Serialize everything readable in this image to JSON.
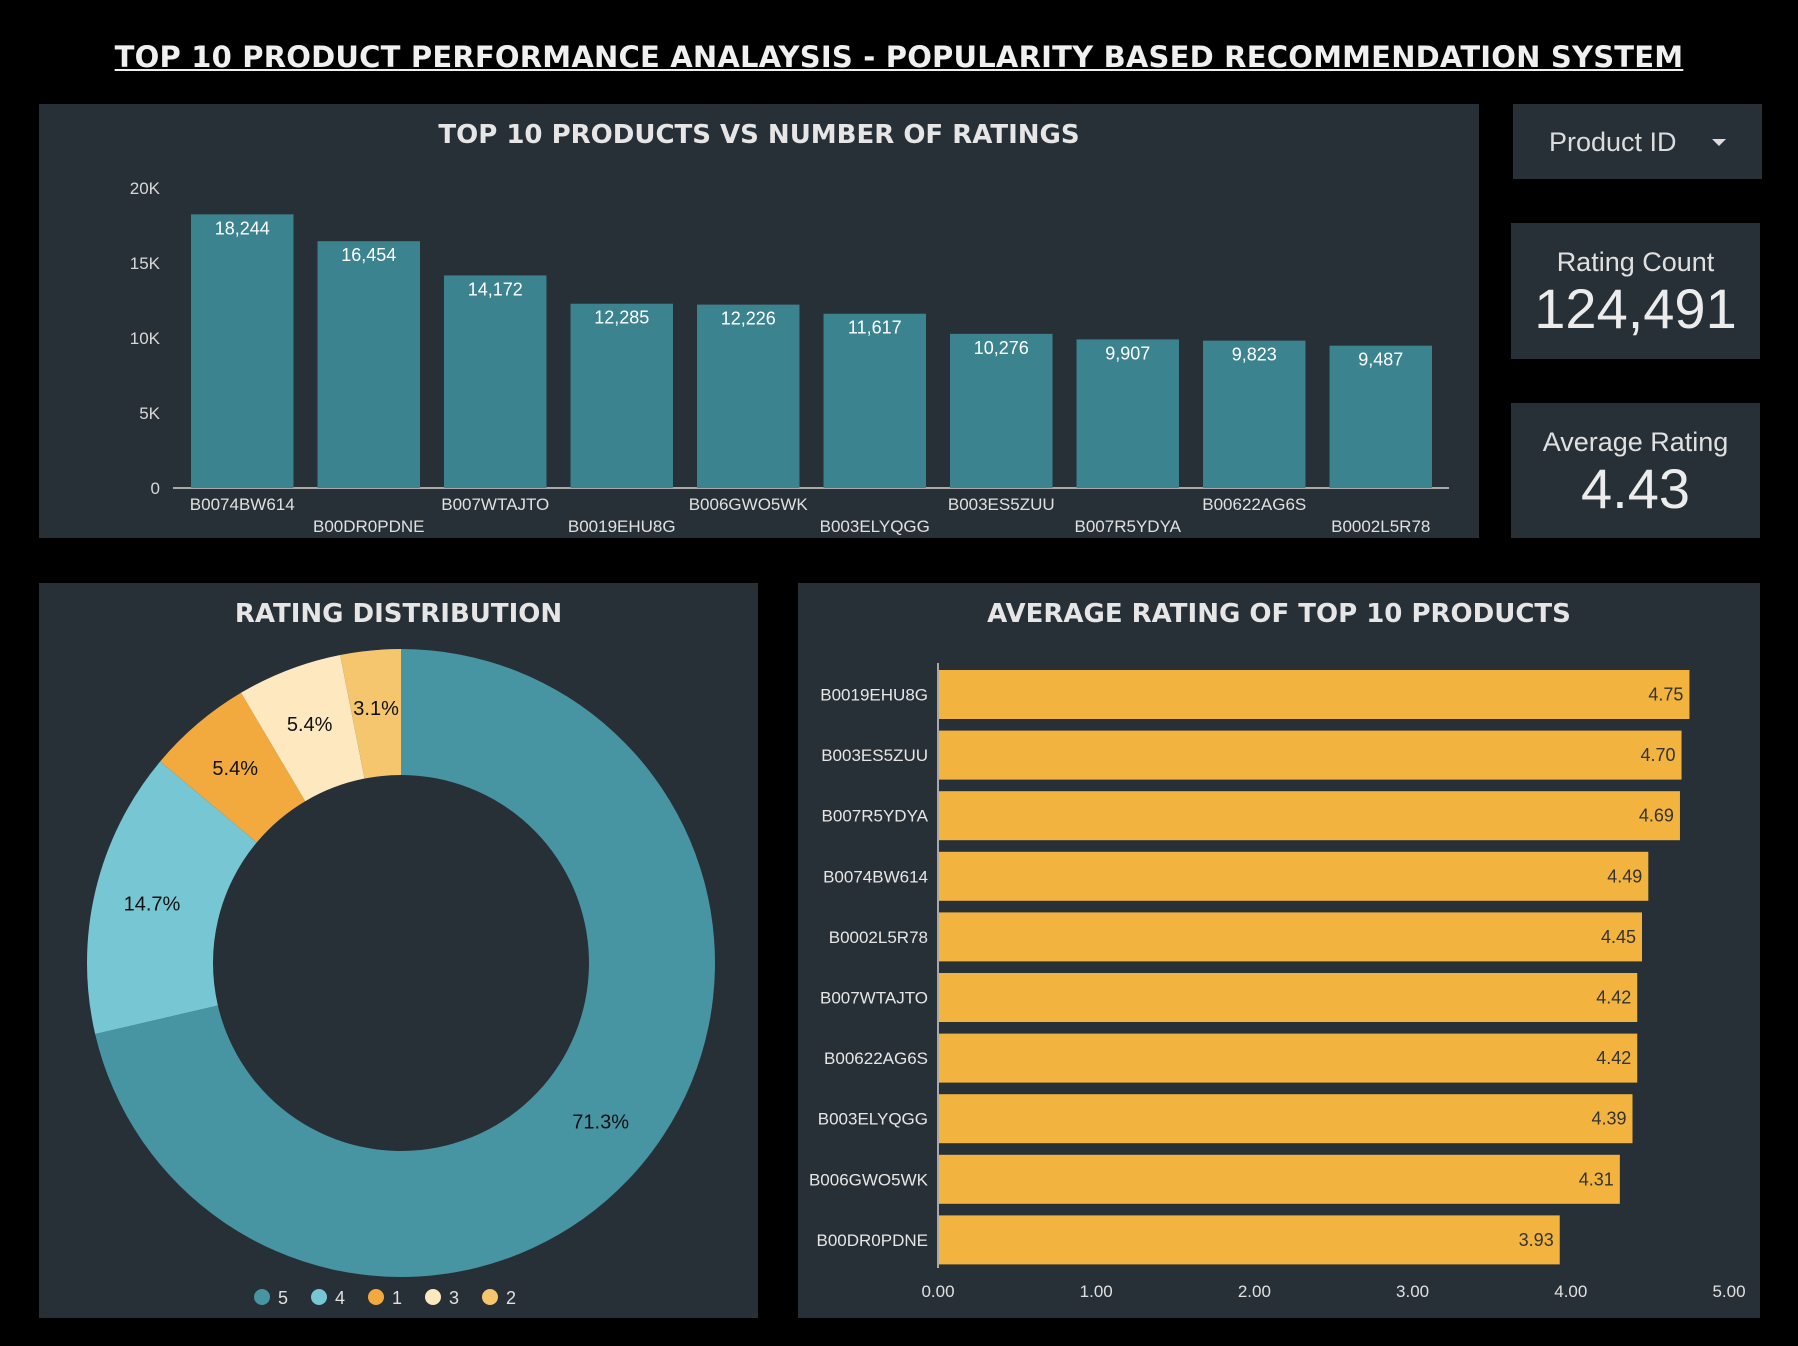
{
  "page_title": "TOP 10 PRODUCT PERFORMANCE ANALAYSIS - POPULARITY BASED RECOMMENDATION SYSTEM",
  "filter": {
    "label": "Product ID",
    "icon": "chevron-down-icon"
  },
  "kpis": {
    "rating_count": {
      "label": "Rating Count",
      "value": "124,491"
    },
    "average_rating": {
      "label": "Average Rating",
      "value": "4.43"
    }
  },
  "colors": {
    "background": "#000000",
    "panel": "#283037",
    "bar_teal": "#3b848f",
    "bar_amber": "#f3b43f",
    "pie": [
      "#4794a2",
      "#77c6d3",
      "#f2aa3e",
      "#fde8bf",
      "#f6c66e"
    ]
  },
  "chart_data": [
    {
      "type": "bar",
      "title": "TOP 10 PRODUCTS VS NUMBER OF RATINGS",
      "categories": [
        "B0074BW614",
        "B00DR0PDNE",
        "B007WTAJTO",
        "B0019EHU8G",
        "B006GWO5WK",
        "B003ELYQGG",
        "B003ES5ZUU",
        "B007R5YDYA",
        "B00622AG6S",
        "B0002L5R78"
      ],
      "values": [
        18244,
        16454,
        14172,
        12285,
        12226,
        11617,
        10276,
        9907,
        9823,
        9487
      ],
      "value_labels": [
        "18,244",
        "16,454",
        "14,172",
        "12,285",
        "12,226",
        "11,617",
        "10,276",
        "9,907",
        "9,823",
        "9,487"
      ],
      "ylim": [
        0,
        20000
      ],
      "yticks": [
        0,
        5000,
        10000,
        15000,
        20000
      ],
      "ytick_labels": [
        "0",
        "5K",
        "10K",
        "15K",
        "20K"
      ],
      "grid": false
    },
    {
      "type": "pie",
      "title": "RATING DISTRIBUTION",
      "labels": [
        "5",
        "4",
        "1",
        "3",
        "2"
      ],
      "values": [
        71.3,
        14.7,
        5.4,
        5.4,
        3.1
      ],
      "value_labels": [
        "71.3%",
        "14.7%",
        "5.4%",
        "5.4%",
        "3.1%"
      ],
      "donut": true,
      "legend": "bottom"
    },
    {
      "type": "bar",
      "orientation": "horizontal",
      "title": "AVERAGE RATING OF TOP 10 PRODUCTS",
      "categories": [
        "B0019EHU8G",
        "B003ES5ZUU",
        "B007R5YDYA",
        "B0074BW614",
        "B0002L5R78",
        "B007WTAJTO",
        "B00622AG6S",
        "B003ELYQGG",
        "B006GWO5WK",
        "B00DR0PDNE"
      ],
      "values": [
        4.75,
        4.7,
        4.69,
        4.49,
        4.45,
        4.42,
        4.42,
        4.39,
        4.31,
        3.93
      ],
      "value_labels": [
        "4.75",
        "4.70",
        "4.69",
        "4.49",
        "4.45",
        "4.42",
        "4.42",
        "4.39",
        "4.31",
        "3.93"
      ],
      "xlim": [
        0,
        5
      ],
      "xticks": [
        0,
        1,
        2,
        3,
        4,
        5
      ],
      "xtick_labels": [
        "0.00",
        "1.00",
        "2.00",
        "3.00",
        "4.00",
        "5.00"
      ],
      "grid": false
    }
  ]
}
